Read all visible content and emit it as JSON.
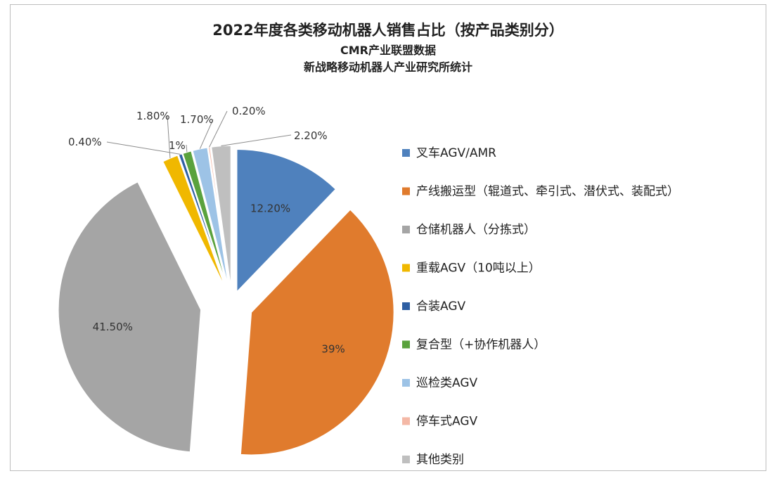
{
  "chart_data": {
    "type": "pie",
    "title": "2022年度各类移动机器人销售占比（按产品类别分）",
    "subtitle_lines": [
      "CMR产业联盟数据",
      "新战略移动机器人产业研究所统计"
    ],
    "slices": [
      {
        "name": "叉车AGV/AMR",
        "value": 12.2,
        "label": "12.20%",
        "color": "#4f81bd"
      },
      {
        "name": "产线搬运型（辊道式、牵引式、潜伏式、装配式）",
        "value": 39.0,
        "label": "39%",
        "color": "#e07b2d"
      },
      {
        "name": "仓储机器人（分拣式）",
        "value": 41.5,
        "label": "41.50%",
        "color": "#a5a5a5"
      },
      {
        "name": "重载AGV（10吨以上）",
        "value": 1.8,
        "label": "1.80%",
        "color": "#f0b800"
      },
      {
        "name": "合装AGV",
        "value": 0.4,
        "label": "0.40%",
        "color": "#2e5fa3"
      },
      {
        "name": "复合型（+协作机器人）",
        "value": 1.0,
        "label": "1%",
        "color": "#5aa23d"
      },
      {
        "name": "巡检类AGV",
        "value": 1.7,
        "label": "1.70%",
        "color": "#9dc3e6"
      },
      {
        "name": "停车式AGV",
        "value": 0.2,
        "label": "0.20%",
        "color": "#f4b8a6"
      },
      {
        "name": "其他类别",
        "value": 2.2,
        "label": "2.20%",
        "color": "#bfbfbf"
      }
    ],
    "legend_position": "right"
  }
}
